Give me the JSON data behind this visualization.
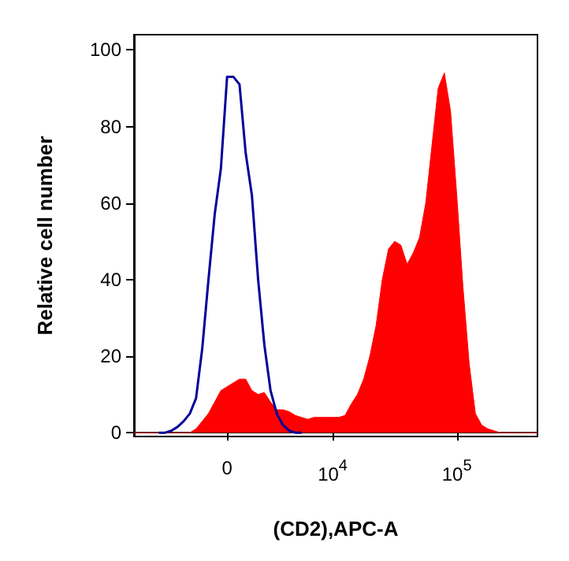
{
  "chart_data": {
    "type": "area",
    "xlabel": "(CD2),APC-A",
    "ylabel": "Relative cell number",
    "categories": [
      null,
      null,
      null,
      null,
      null,
      null,
      null,
      null,
      null,
      null,
      null,
      null,
      null,
      null,
      null,
      "0",
      null,
      null,
      null,
      null,
      null,
      null,
      null,
      null,
      null,
      null,
      null,
      null,
      null,
      null,
      null,
      null,
      "10$^{4}$",
      null,
      null,
      null,
      null,
      null,
      null,
      null,
      null,
      null,
      null,
      null,
      null,
      null,
      null,
      null,
      null,
      null,
      null,
      null,
      "10$^{5}$",
      null,
      null,
      null,
      null,
      null,
      null,
      null,
      null,
      null,
      null,
      null,
      null,
      null
    ],
    "series": [
      {
        "color": "#ff0000",
        "values": [
          0,
          0,
          0,
          0,
          0,
          0,
          0,
          0,
          0,
          0,
          1,
          3,
          5,
          8,
          11,
          12,
          13,
          14,
          14,
          11,
          10,
          10.5,
          8,
          6,
          6,
          5.5,
          4.5,
          4,
          3.5,
          4,
          4,
          4,
          4,
          4,
          4.5,
          7.5,
          10,
          14,
          20,
          28,
          40,
          48,
          50,
          49,
          44,
          47,
          51,
          60,
          75,
          90,
          94,
          84,
          62,
          38,
          18,
          5,
          2,
          1,
          0.5,
          0,
          0,
          0,
          0,
          0,
          0,
          0
        ]
      },
      {
        "type": "line",
        "color": "#000099",
        "values": [
          null,
          null,
          null,
          null,
          0,
          0,
          0.5,
          1.5,
          3,
          5,
          9,
          22,
          40,
          57,
          69,
          93,
          93,
          91,
          73,
          62,
          40,
          23,
          11,
          5,
          2,
          0.5,
          0,
          0,
          null,
          null,
          null,
          null,
          null,
          null,
          null,
          null,
          null,
          null,
          null,
          null,
          null,
          null,
          null,
          null,
          null,
          null,
          null,
          null,
          null,
          null,
          null,
          null,
          null,
          null,
          null,
          null,
          null,
          null,
          null,
          null,
          null,
          null,
          null,
          null,
          null,
          null
        ]
      }
    ],
    "ylim": [
      -1,
      104
    ],
    "yticks": [
      0,
      20,
      40,
      60,
      80,
      100
    ],
    "marker": "none",
    "line_style": "solid"
  }
}
